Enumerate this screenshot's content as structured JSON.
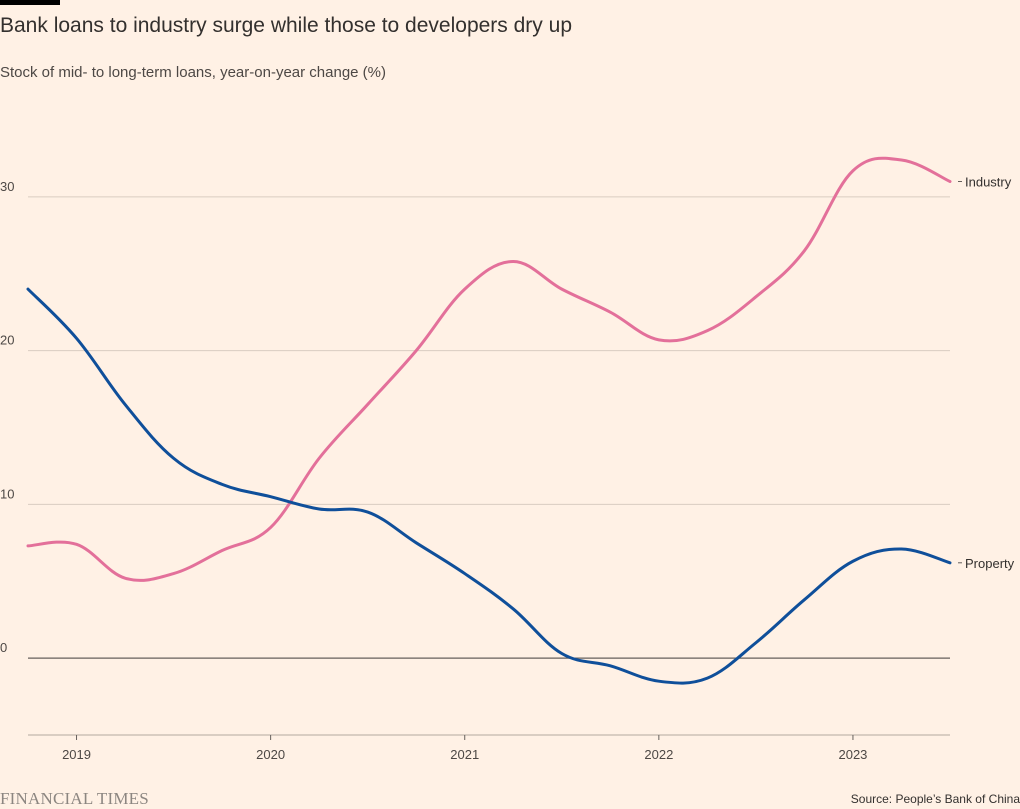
{
  "header": {
    "title": "Bank loans to industry surge while those to developers dry up",
    "subtitle": "Stock of mid- to long-term loans, year-on-year change (%)"
  },
  "footer": {
    "logo": "FINANCIAL TIMES",
    "source": "Source: People’s Bank of China"
  },
  "colors": {
    "background": "#fff1e5",
    "industry": "#e3709a",
    "property": "#0f4f9a",
    "grid": "#d9ccc1",
    "zero_line": "#66605c"
  },
  "chart_data": {
    "type": "line",
    "title": "Bank loans to industry surge while those to developers dry up",
    "ylabel": "Stock of mid- to long-term loans, year-on-year change (%)",
    "xlim": [
      2018.75,
      2023.5
    ],
    "ylim": [
      -5,
      35
    ],
    "x_ticks": [
      2019,
      2020,
      2021,
      2022,
      2023
    ],
    "x_tick_labels": [
      "2019",
      "2020",
      "2021",
      "2022",
      "2023"
    ],
    "y_ticks": [
      0,
      10,
      20,
      30
    ],
    "y_tick_labels": [
      "0",
      "10",
      "20",
      "30"
    ],
    "grid": true,
    "series": [
      {
        "name": "Industry",
        "color": "#e3709a",
        "x": [
          2018.75,
          2019.0,
          2019.25,
          2019.5,
          2019.75,
          2020.0,
          2020.25,
          2020.5,
          2020.75,
          2021.0,
          2021.25,
          2021.5,
          2021.75,
          2022.0,
          2022.25,
          2022.5,
          2022.75,
          2023.0,
          2023.25,
          2023.5
        ],
        "y": [
          7.3,
          7.4,
          5.2,
          5.5,
          7.0,
          8.5,
          13.0,
          16.5,
          20.0,
          24.0,
          25.8,
          24.0,
          22.5,
          20.7,
          21.3,
          23.5,
          26.5,
          31.7,
          32.4,
          31.0
        ]
      },
      {
        "name": "Property",
        "color": "#0f4f9a",
        "x": [
          2018.75,
          2019.0,
          2019.25,
          2019.5,
          2019.75,
          2020.0,
          2020.25,
          2020.5,
          2020.75,
          2021.0,
          2021.25,
          2021.5,
          2021.75,
          2022.0,
          2022.25,
          2022.5,
          2022.75,
          2023.0,
          2023.25,
          2023.5
        ],
        "y": [
          24.0,
          20.8,
          16.5,
          13.0,
          11.3,
          10.5,
          9.7,
          9.5,
          7.5,
          5.5,
          3.2,
          0.3,
          -0.5,
          -1.5,
          -1.3,
          1.0,
          3.8,
          6.3,
          7.1,
          6.2
        ]
      }
    ]
  }
}
